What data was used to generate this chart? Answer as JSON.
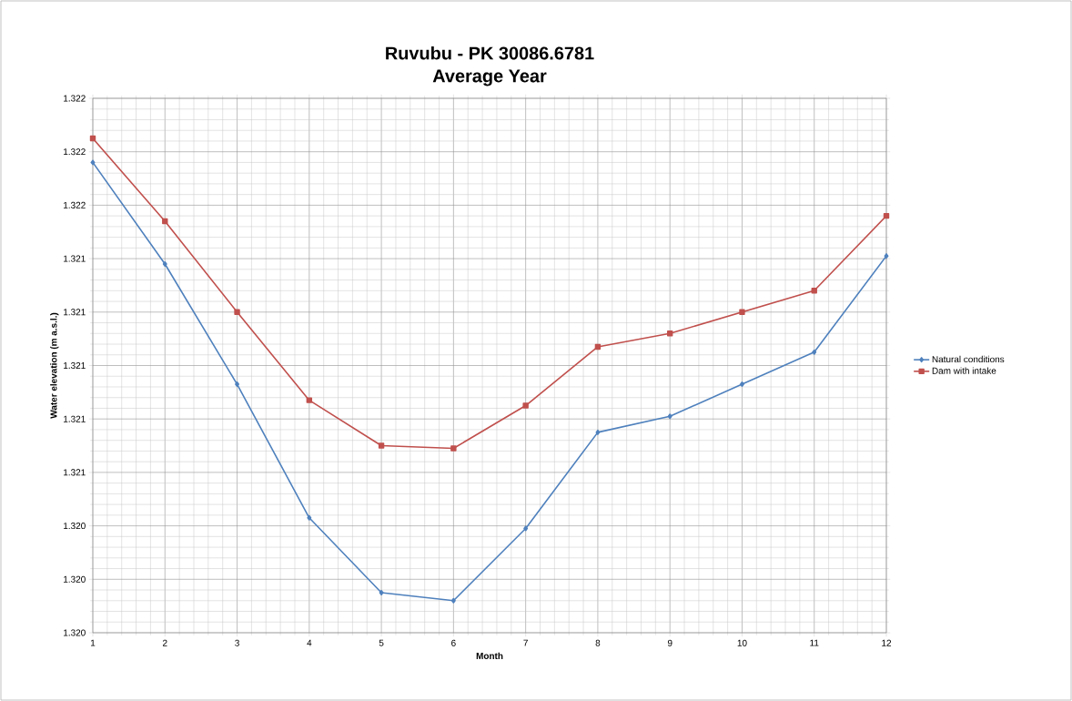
{
  "chart_data": {
    "type": "line",
    "title": "Ruvubu - PK 30086.6781",
    "subtitle": "Average Year",
    "xlabel": "Month",
    "ylabel": "Water elevation (m a.s.l.)",
    "x": [
      1,
      2,
      3,
      4,
      5,
      6,
      7,
      8,
      9,
      10,
      11,
      12
    ],
    "series": [
      {
        "name": "Natural conditions",
        "color": "#4f81bd",
        "marker": "diamond",
        "values": [
          1.32176,
          1.32138,
          1.32093,
          1.32043,
          1.32015,
          1.32012,
          1.32039,
          1.32075,
          1.32081,
          1.32093,
          1.32105,
          1.32141
        ]
      },
      {
        "name": "Dam with intake",
        "color": "#c0504d",
        "marker": "square",
        "values": [
          1.32185,
          1.32154,
          1.3212,
          1.32087,
          1.3207,
          1.32069,
          1.32085,
          1.32107,
          1.32112,
          1.3212,
          1.32128,
          1.32156
        ]
      }
    ],
    "xlim": [
      1,
      12
    ],
    "xticks": [
      1,
      2,
      3,
      4,
      5,
      6,
      7,
      8,
      9,
      10,
      11,
      12
    ],
    "ylim": [
      1.32,
      1.322
    ],
    "yticks": [
      {
        "value": 1.32,
        "label": "1.320"
      },
      {
        "value": 1.3202,
        "label": "1.320"
      },
      {
        "value": 1.3204,
        "label": "1.320"
      },
      {
        "value": 1.3206,
        "label": "1.321"
      },
      {
        "value": 1.3208,
        "label": "1.321"
      },
      {
        "value": 1.321,
        "label": "1.321"
      },
      {
        "value": 1.3212,
        "label": "1.321"
      },
      {
        "value": 1.3214,
        "label": "1.321"
      },
      {
        "value": 1.3216,
        "label": "1.322"
      },
      {
        "value": 1.3218,
        "label": "1.322"
      },
      {
        "value": 1.322,
        "label": "1.322"
      }
    ],
    "grid": true,
    "legend": "right",
    "line_style": "solid"
  }
}
